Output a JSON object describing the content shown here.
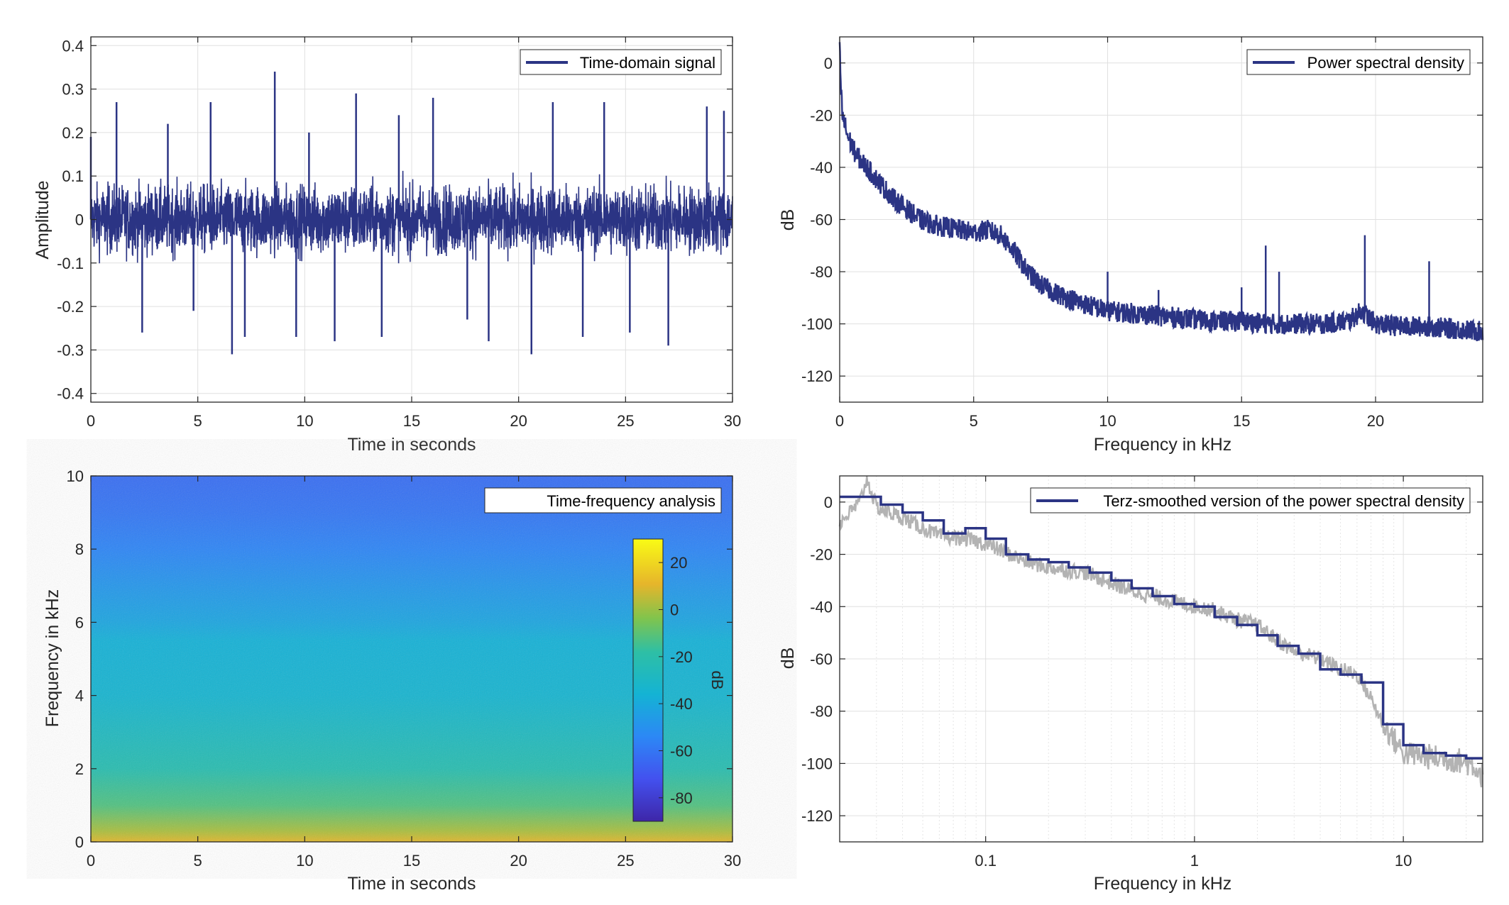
{
  "chart_data": [
    {
      "type": "line",
      "legend": [
        "Time-domain signal"
      ],
      "legend_position": "top-right",
      "xlabel": "Time in seconds",
      "ylabel": "Amplitude",
      "xlim": [
        0,
        30
      ],
      "ylim": [
        -0.42,
        0.42
      ],
      "xticks": [
        0,
        5,
        10,
        15,
        20,
        25,
        30
      ],
      "xtick_labels": [
        "0",
        "5",
        "10",
        "15",
        "20",
        "25",
        "30"
      ],
      "yticks": [
        -0.4,
        -0.3,
        -0.2,
        -0.1,
        0,
        0.1,
        0.2,
        0.3,
        0.4
      ],
      "ytick_labels": [
        "-0.4",
        "-0.3",
        "-0.2",
        "-0.1",
        "0",
        "0.1",
        "0.2",
        "0.3",
        "0.4"
      ],
      "grid": true,
      "series": [
        {
          "name": "Time-domain signal",
          "color": "#2b3484",
          "x": [
            0,
            1.2,
            2.4,
            3.6,
            4.8,
            5.6,
            6.6,
            7.2,
            8.6,
            9.6,
            10.2,
            11.4,
            12.4,
            13.6,
            14.4,
            16.0,
            17.6,
            18.6,
            20.6,
            21.6,
            23.0,
            24.0,
            25.2,
            27.0,
            28.8,
            29.6
          ],
          "y": [
            0.19,
            0.27,
            -0.26,
            0.22,
            -0.21,
            0.27,
            -0.31,
            -0.27,
            0.34,
            -0.27,
            0.2,
            -0.28,
            0.29,
            -0.27,
            0.24,
            0.28,
            -0.23,
            -0.28,
            -0.31,
            0.27,
            -0.27,
            0.27,
            -0.26,
            -0.29,
            0.26,
            0.25
          ]
        }
      ]
    },
    {
      "type": "line",
      "legend": [
        "Power spectral density"
      ],
      "legend_position": "top-right",
      "xlabel": "Frequency in kHz",
      "ylabel": "dB",
      "xlim": [
        0,
        24
      ],
      "ylim": [
        -130,
        10
      ],
      "xticks": [
        0,
        5,
        10,
        15,
        20
      ],
      "xtick_labels": [
        "0",
        "5",
        "10",
        "15",
        "20"
      ],
      "yticks": [
        -120,
        -100,
        -80,
        -60,
        -40,
        -20,
        0
      ],
      "ytick_labels": [
        "-120",
        "-100",
        "-80",
        "-60",
        "-40",
        "-20",
        "0"
      ],
      "grid": true,
      "series": [
        {
          "name": "Power spectral density",
          "color": "#2b3484",
          "x": [
            0,
            0.05,
            0.1,
            0.3,
            0.6,
            1,
            1.5,
            2,
            2.5,
            3,
            3.5,
            4,
            4.5,
            5,
            5.5,
            6,
            6.5,
            7,
            7.5,
            8,
            9,
            10,
            11,
            12,
            13,
            14,
            15,
            16,
            17,
            18,
            19,
            19.5,
            20,
            21,
            22,
            23,
            24
          ],
          "y": [
            5,
            -10,
            -20,
            -28,
            -35,
            -40,
            -46,
            -52,
            -56,
            -60,
            -62,
            -63,
            -64,
            -65,
            -64,
            -66,
            -72,
            -80,
            -85,
            -88,
            -92,
            -95,
            -96,
            -97,
            -98,
            -99,
            -99,
            -100,
            -100,
            -100,
            -99,
            -95,
            -100,
            -101,
            -101,
            -102,
            -103
          ]
        }
      ],
      "peaks": [
        {
          "x": 10.0,
          "y": -80
        },
        {
          "x": 11.9,
          "y": -87
        },
        {
          "x": 15.0,
          "y": -86
        },
        {
          "x": 15.9,
          "y": -70
        },
        {
          "x": 16.4,
          "y": -80
        },
        {
          "x": 19.6,
          "y": -66
        },
        {
          "x": 22.0,
          "y": -76
        }
      ]
    },
    {
      "type": "heatmap",
      "legend": [
        "Time-frequency analysis"
      ],
      "legend_position": "top-right",
      "xlabel": "Time in seconds",
      "ylabel": "Frequency in kHz",
      "xlim": [
        0,
        30
      ],
      "ylim": [
        0,
        10
      ],
      "xticks": [
        0,
        5,
        10,
        15,
        20,
        25,
        30
      ],
      "xtick_labels": [
        "0",
        "5",
        "10",
        "15",
        "20",
        "25",
        "30"
      ],
      "yticks": [
        0,
        2,
        4,
        6,
        8,
        10
      ],
      "ytick_labels": [
        "0",
        "2",
        "4",
        "6",
        "8",
        "10"
      ],
      "colorbar": {
        "label": "dB",
        "range": [
          -90,
          30
        ],
        "ticks": [
          20,
          0,
          -20,
          -40,
          -60,
          -80
        ],
        "tick_labels": [
          "20",
          "0",
          "-20",
          "-40",
          "-60",
          "-80"
        ]
      },
      "level_profile": [
        {
          "freq_khz": 0,
          "db": 10
        },
        {
          "freq_khz": 0.3,
          "db": 2
        },
        {
          "freq_khz": 1,
          "db": -12
        },
        {
          "freq_khz": 2,
          "db": -22
        },
        {
          "freq_khz": 3,
          "db": -28
        },
        {
          "freq_khz": 4,
          "db": -34
        },
        {
          "freq_khz": 5.5,
          "db": -37
        },
        {
          "freq_khz": 6,
          "db": -42
        },
        {
          "freq_khz": 7,
          "db": -48
        },
        {
          "freq_khz": 8,
          "db": -55
        },
        {
          "freq_khz": 9,
          "db": -60
        },
        {
          "freq_khz": 10,
          "db": -63
        }
      ]
    },
    {
      "type": "line",
      "legend": [
        "Terz-smoothed version of the power spectral density"
      ],
      "legend_position": "top-right",
      "xlabel": "Frequency in kHz",
      "ylabel": "dB",
      "xscale": "log",
      "xlim": [
        0.02,
        24
      ],
      "ylim": [
        -130,
        10
      ],
      "xticks": [
        0.1,
        1,
        10
      ],
      "xtick_labels": [
        "0.1",
        "1",
        "10"
      ],
      "yticks": [
        -120,
        -100,
        -80,
        -60,
        -40,
        -20,
        0
      ],
      "ytick_labels": [
        "-120",
        "-100",
        "-80",
        "-60",
        "-40",
        "-20",
        "0"
      ],
      "grid": true,
      "series": [
        {
          "name": "Terz-smoothed version of the power spectral density",
          "color": "#2b3484",
          "x": [
            0.02,
            0.025,
            0.0315,
            0.04,
            0.05,
            0.063,
            0.08,
            0.1,
            0.125,
            0.16,
            0.2,
            0.25,
            0.315,
            0.4,
            0.5,
            0.63,
            0.8,
            1.0,
            1.25,
            1.6,
            2.0,
            2.5,
            3.15,
            4.0,
            5.0,
            6.3,
            8.0,
            10.0,
            12.5,
            16.0,
            20.0,
            24.0
          ],
          "y": [
            2,
            2,
            -1,
            -4,
            -7,
            -12,
            -10,
            -14,
            -20,
            -22,
            -23,
            -25,
            -27,
            -30,
            -33,
            -36,
            -39,
            -40,
            -44,
            -47,
            -51,
            -55,
            -58,
            -64,
            -66,
            -69,
            -85,
            -93,
            -96,
            -97,
            -98,
            -98
          ]
        },
        {
          "name": "",
          "color": "#b3b3b3",
          "x": [
            0.02,
            0.025,
            0.027,
            0.03,
            0.04,
            0.05,
            0.06,
            0.08,
            0.1,
            0.13,
            0.16,
            0.2,
            0.3,
            0.4,
            0.5,
            0.7,
            0.9,
            1.2,
            1.6,
            2,
            2.5,
            3,
            4,
            5,
            6,
            7,
            8,
            10,
            12,
            15,
            19,
            22,
            24
          ],
          "y": [
            -8,
            0,
            9,
            -2,
            -6,
            -10,
            -13,
            -14,
            -16,
            -20,
            -23,
            -25,
            -27,
            -31,
            -34,
            -37,
            -39,
            -41,
            -45,
            -47,
            -53,
            -57,
            -60,
            -64,
            -66,
            -75,
            -85,
            -96,
            -97,
            -98,
            -99,
            -101,
            -105
          ]
        }
      ]
    }
  ]
}
